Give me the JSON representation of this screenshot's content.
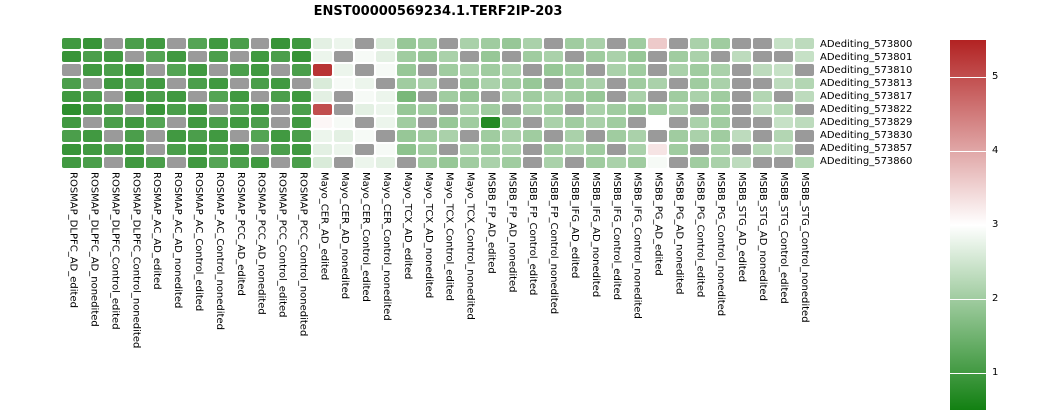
{
  "chart_data": {
    "type": "heatmap",
    "title": "ENST00000569234.1.TERF2IP-203",
    "legend_position": "right",
    "colors": {
      "low": "#128012",
      "mid": "#ffffff",
      "high": "#b22222",
      "na": "#9a9a9a"
    },
    "scale": {
      "min": 0.5,
      "mid": 3.0,
      "max": 5.5
    },
    "legend_ticks": [
      5,
      4,
      3,
      2,
      1
    ],
    "rows": [
      "ADediting_573800",
      "ADediting_573801",
      "ADediting_573810",
      "ADediting_573813",
      "ADediting_573817",
      "ADediting_573822",
      "ADediting_573829",
      "ADediting_573830",
      "ADediting_573857",
      "ADediting_573860"
    ],
    "columns": [
      "ROSMAP_DLPFC_AD_edited",
      "ROSMAP_DLPFC_AD_nonedited",
      "ROSMAP_DLPFC_Control_edited",
      "ROSMAP_DLPFC_Control_nonedited",
      "ROSMAP_AC_AD_edited",
      "ROSMAP_AC_AD_nonedited",
      "ROSMAP_AC_Control_edited",
      "ROSMAP_AC_Control_nonedited",
      "ROSMAP_PCC_AD_edited",
      "ROSMAP_PCC_AD_nonedited",
      "ROSMAP_PCC_Control_edited",
      "ROSMAP_PCC_Control_nonedited",
      "Mayo_CER_AD_edited",
      "Mayo_CER_AD_nonedited",
      "Mayo_CER_Control_edited",
      "Mayo_CER_Control_nonedited",
      "Mayo_TCX_AD_edited",
      "Mayo_TCX_AD_nonedited",
      "Mayo_TCX_Control_edited",
      "Mayo_TCX_Control_nonedited",
      "MSBB_FP_AD_edited",
      "MSBB_FP_AD_nonedited",
      "MSBB_FP_Control_edited",
      "MSBB_FP_Control_nonedited",
      "MSBB_IFG_AD_edited",
      "MSBB_IFG_AD_nonedited",
      "MSBB_IFG_Control_edited",
      "MSBB_IFG_Control_nonedited",
      "MSBB_PG_AD_edited",
      "MSBB_PG_AD_nonedited",
      "MSBB_PG_Control_edited",
      "MSBB_PG_Control_nonedited",
      "MSBB_STG_AD_edited",
      "MSBB_STG_AD_nonedited",
      "MSBB_STG_Control_edited",
      "MSBB_STG_Control_nonedited"
    ],
    "values": [
      [
        1.0,
        0.9,
        null,
        1.1,
        1.0,
        null,
        1.2,
        1.0,
        1.1,
        null,
        0.9,
        1.0,
        2.7,
        2.8,
        null,
        2.6,
        1.9,
        2.0,
        null,
        2.1,
        2.0,
        1.9,
        2.1,
        null,
        2.0,
        2.1,
        null,
        2.0,
        3.6,
        null,
        2.1,
        2.0,
        null,
        null,
        2.4,
        2.3
      ],
      [
        0.9,
        1.1,
        1.0,
        null,
        1.2,
        1.0,
        null,
        1.1,
        null,
        1.0,
        1.1,
        0.9,
        2.8,
        null,
        2.9,
        2.7,
        2.0,
        1.9,
        2.1,
        null,
        1.9,
        null,
        2.0,
        2.1,
        null,
        2.0,
        2.1,
        1.9,
        null,
        2.0,
        2.1,
        null,
        2.3,
        null,
        null,
        2.4
      ],
      [
        null,
        1.0,
        1.1,
        0.9,
        null,
        1.2,
        1.0,
        null,
        1.1,
        1.0,
        null,
        1.1,
        5.3,
        2.8,
        null,
        2.9,
        1.9,
        null,
        2.0,
        2.1,
        2.0,
        2.1,
        null,
        1.9,
        2.0,
        null,
        2.1,
        2.0,
        null,
        2.1,
        2.0,
        2.1,
        null,
        2.3,
        2.4,
        null
      ],
      [
        1.1,
        null,
        1.0,
        1.2,
        1.0,
        null,
        1.1,
        1.0,
        null,
        1.1,
        1.0,
        null,
        2.6,
        2.9,
        2.8,
        null,
        2.0,
        2.1,
        null,
        1.9,
        2.1,
        2.0,
        1.9,
        null,
        2.0,
        2.1,
        null,
        2.0,
        2.1,
        null,
        2.0,
        2.1,
        null,
        null,
        2.3,
        2.2
      ],
      [
        1.0,
        1.1,
        null,
        0.9,
        1.1,
        1.0,
        null,
        1.2,
        1.0,
        null,
        1.1,
        1.0,
        2.7,
        null,
        2.9,
        2.8,
        1.6,
        null,
        2.0,
        1.9,
        null,
        2.1,
        2.0,
        2.1,
        2.0,
        1.9,
        null,
        2.1,
        null,
        2.0,
        2.1,
        2.0,
        null,
        2.2,
        null,
        2.3
      ],
      [
        0.8,
        1.0,
        1.1,
        null,
        0.9,
        1.1,
        1.0,
        null,
        1.2,
        1.0,
        null,
        1.1,
        5.0,
        null,
        2.7,
        2.8,
        1.9,
        2.0,
        null,
        2.1,
        2.0,
        null,
        2.1,
        2.0,
        null,
        2.1,
        2.0,
        1.9,
        2.0,
        2.1,
        null,
        2.0,
        null,
        2.3,
        2.2,
        null
      ],
      [
        1.0,
        null,
        1.1,
        1.0,
        1.2,
        null,
        1.0,
        1.1,
        1.0,
        1.1,
        null,
        1.0,
        3.1,
        2.9,
        null,
        2.8,
        2.0,
        null,
        1.9,
        2.0,
        0.7,
        2.0,
        null,
        2.1,
        2.0,
        2.1,
        2.0,
        null,
        3.0,
        null,
        2.1,
        2.0,
        null,
        null,
        2.4,
        2.3
      ],
      [
        1.1,
        1.0,
        null,
        1.1,
        null,
        1.0,
        1.1,
        1.0,
        null,
        1.2,
        1.0,
        1.1,
        2.8,
        2.7,
        2.9,
        null,
        1.9,
        2.0,
        2.1,
        null,
        2.0,
        2.1,
        2.0,
        null,
        2.1,
        null,
        2.0,
        2.1,
        null,
        2.0,
        2.1,
        2.0,
        2.3,
        null,
        2.2,
        null
      ],
      [
        0.9,
        1.0,
        1.1,
        1.0,
        null,
        1.1,
        1.0,
        1.1,
        1.0,
        null,
        1.1,
        1.0,
        2.7,
        2.8,
        null,
        2.9,
        1.8,
        2.0,
        null,
        2.1,
        2.0,
        2.1,
        null,
        2.0,
        2.1,
        2.0,
        null,
        2.1,
        3.3,
        2.0,
        null,
        2.1,
        null,
        2.2,
        2.3,
        null
      ],
      [
        1.0,
        1.1,
        null,
        1.0,
        1.1,
        null,
        1.0,
        1.2,
        1.1,
        1.0,
        null,
        1.1,
        2.6,
        null,
        2.8,
        2.7,
        null,
        2.0,
        1.9,
        2.0,
        2.1,
        2.0,
        null,
        2.1,
        null,
        2.0,
        2.1,
        2.0,
        2.9,
        null,
        2.0,
        2.1,
        2.3,
        null,
        null,
        2.2
      ]
    ]
  }
}
